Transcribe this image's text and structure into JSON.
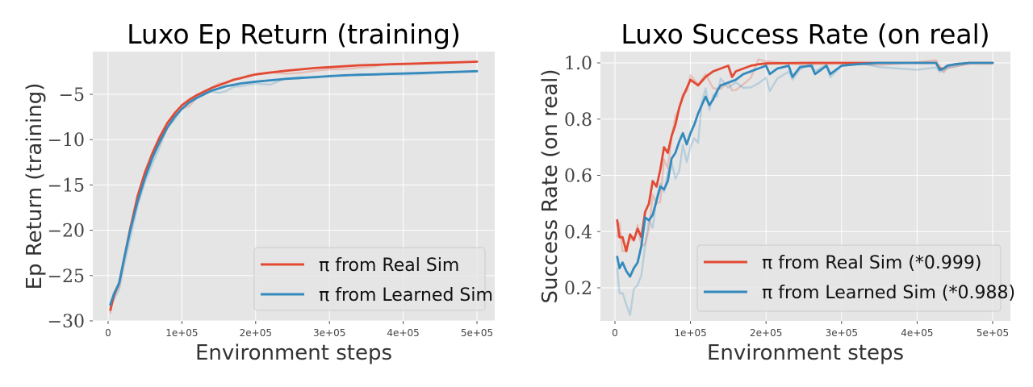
{
  "colors": {
    "red": "#E24A33",
    "blue": "#348ABD",
    "panel_bg": "#E5E5E5",
    "grid": "#FFFFFF"
  },
  "chart_data": [
    {
      "type": "line",
      "title": "Luxo Ep Return (training)",
      "xlabel": "Environment steps",
      "ylabel": "Ep Return (training)",
      "xlim": [
        -20000,
        520000
      ],
      "ylim": [
        -30,
        -1
      ],
      "grid": true,
      "legend_position": "bottom-right",
      "xtick_labels": [
        "0",
        "1e+05",
        "2e+05",
        "3e+05",
        "4e+05",
        "5e+05"
      ],
      "ytick_labels": [
        "−30",
        "−25",
        "−20",
        "−15",
        "−10",
        "−5"
      ],
      "series": [
        {
          "name": "π from Real Sim",
          "color": "#E24A33",
          "x": [
            3000,
            8000,
            15000,
            22000,
            30000,
            40000,
            50000,
            60000,
            70000,
            80000,
            90000,
            100000,
            110000,
            120000,
            130000,
            140000,
            150000,
            160000,
            170000,
            180000,
            190000,
            200000,
            220000,
            240000,
            260000,
            280000,
            300000,
            320000,
            340000,
            360000,
            380000,
            400000,
            420000,
            440000,
            460000,
            480000,
            500000
          ],
          "y": [
            -28.8,
            -27.2,
            -25.8,
            -23.0,
            -19.8,
            -16.2,
            -13.6,
            -11.5,
            -9.7,
            -8.2,
            -7.1,
            -6.2,
            -5.6,
            -5.1,
            -4.7,
            -4.3,
            -4.0,
            -3.7,
            -3.4,
            -3.2,
            -3.0,
            -2.8,
            -2.6,
            -2.4,
            -2.25,
            -2.1,
            -2.0,
            -1.9,
            -1.8,
            -1.75,
            -1.7,
            -1.65,
            -1.6,
            -1.55,
            -1.5,
            -1.45,
            -1.4
          ]
        },
        {
          "name": "π from Learned Sim",
          "color": "#348ABD",
          "x": [
            3000,
            8000,
            15000,
            22000,
            30000,
            40000,
            50000,
            60000,
            70000,
            80000,
            90000,
            100000,
            110000,
            120000,
            130000,
            140000,
            150000,
            160000,
            170000,
            180000,
            190000,
            200000,
            220000,
            240000,
            260000,
            280000,
            300000,
            320000,
            340000,
            360000,
            380000,
            400000,
            420000,
            440000,
            460000,
            480000,
            500000
          ],
          "y": [
            -28.2,
            -27.0,
            -25.8,
            -23.0,
            -20.0,
            -16.8,
            -14.2,
            -12.0,
            -10.2,
            -8.7,
            -7.5,
            -6.6,
            -5.9,
            -5.4,
            -5.0,
            -4.6,
            -4.35,
            -4.1,
            -3.95,
            -3.8,
            -3.7,
            -3.6,
            -3.45,
            -3.3,
            -3.2,
            -3.1,
            -3.0,
            -2.9,
            -2.85,
            -2.8,
            -2.75,
            -2.7,
            -2.65,
            -2.6,
            -2.55,
            -2.5,
            -2.45
          ]
        }
      ]
    },
    {
      "type": "line",
      "title": "Luxo Success Rate (on real)",
      "xlabel": "Environment steps",
      "ylabel": "Success Rate (on real)",
      "xlim": [
        -20000,
        520000
      ],
      "ylim": [
        0.09,
        1.04
      ],
      "grid": true,
      "legend_position": "bottom-right",
      "xtick_labels": [
        "0",
        "1e+05",
        "2e+05",
        "3e+05",
        "4e+05",
        "5e+05"
      ],
      "ytick_labels": [
        "0.2",
        "0.4",
        "0.6",
        "0.8",
        "1.0"
      ],
      "series": [
        {
          "name": "π from Real Sim (*0.999)",
          "color": "#E24A33",
          "x": [
            3000,
            6000,
            10000,
            15000,
            20000,
            25000,
            30000,
            35000,
            40000,
            45000,
            50000,
            55000,
            60000,
            65000,
            70000,
            75000,
            80000,
            85000,
            90000,
            95000,
            100000,
            110000,
            120000,
            130000,
            140000,
            150000,
            155000,
            160000,
            170000,
            180000,
            190000,
            200000,
            250000,
            300000,
            350000,
            400000,
            425000,
            430000,
            435000,
            440000,
            450000,
            470000,
            500000
          ],
          "y": [
            0.44,
            0.38,
            0.38,
            0.33,
            0.39,
            0.37,
            0.41,
            0.38,
            0.47,
            0.5,
            0.58,
            0.56,
            0.62,
            0.7,
            0.68,
            0.74,
            0.78,
            0.84,
            0.88,
            0.91,
            0.94,
            0.92,
            0.95,
            0.97,
            0.98,
            0.99,
            0.95,
            0.97,
            0.98,
            0.99,
            0.995,
            0.998,
            1.0,
            1.0,
            1.0,
            1.0,
            1.0,
            0.98,
            0.98,
            0.99,
            0.995,
            1.0,
            1.0
          ]
        },
        {
          "name": "π from Learned Sim (*0.988)",
          "color": "#348ABD",
          "x": [
            3000,
            6000,
            10000,
            15000,
            20000,
            25000,
            30000,
            35000,
            40000,
            45000,
            50000,
            55000,
            60000,
            65000,
            70000,
            75000,
            80000,
            85000,
            90000,
            95000,
            100000,
            105000,
            110000,
            115000,
            120000,
            125000,
            130000,
            135000,
            140000,
            150000,
            160000,
            170000,
            180000,
            190000,
            200000,
            205000,
            215000,
            230000,
            235000,
            245000,
            260000,
            265000,
            280000,
            285000,
            300000,
            320000,
            350000,
            400000,
            425000,
            430000,
            435000,
            440000,
            450000,
            470000,
            500000
          ],
          "y": [
            0.31,
            0.27,
            0.29,
            0.26,
            0.24,
            0.27,
            0.29,
            0.35,
            0.45,
            0.44,
            0.46,
            0.51,
            0.56,
            0.55,
            0.58,
            0.66,
            0.68,
            0.72,
            0.75,
            0.71,
            0.75,
            0.78,
            0.82,
            0.85,
            0.88,
            0.85,
            0.87,
            0.9,
            0.92,
            0.93,
            0.94,
            0.96,
            0.97,
            0.98,
            0.99,
            0.96,
            0.98,
            0.99,
            0.95,
            0.985,
            0.99,
            0.96,
            0.99,
            0.96,
            0.99,
            0.995,
            1.0,
            1.0,
            1.0,
            0.975,
            0.98,
            0.99,
            0.995,
            1.0,
            1.0
          ]
        }
      ]
    }
  ]
}
